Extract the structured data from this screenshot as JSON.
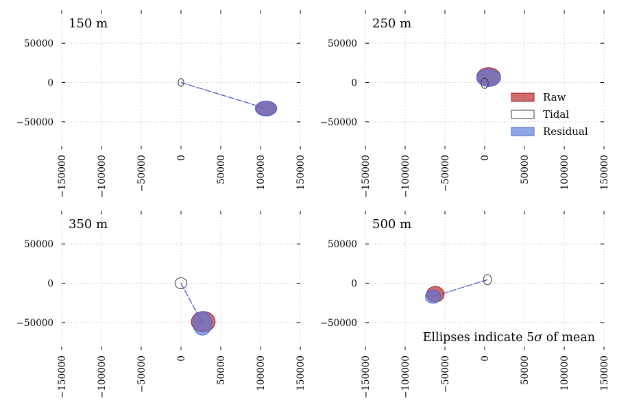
{
  "chart_data": {
    "type": "ellipse-vector",
    "shared": {
      "xlim": [
        -150000,
        150000
      ],
      "ylim": [
        -85000,
        92000
      ],
      "xticks": [
        -150000,
        -100000,
        -50000,
        0,
        50000,
        100000,
        150000
      ],
      "xtick_labels": [
        "−150000",
        "−100000",
        "−50000",
        "0",
        "50000",
        "100000",
        "150000"
      ],
      "yticks": [
        50000,
        0,
        -50000
      ],
      "ytick_labels": [
        "50000",
        "0",
        "−50000"
      ],
      "grid": true
    },
    "legend": {
      "placement": "upper-right panel, right side",
      "items": [
        {
          "label": "Raw",
          "key": "raw"
        },
        {
          "label": "Tidal",
          "key": "tidal"
        },
        {
          "label": "Residual",
          "key": "residual"
        }
      ]
    },
    "colors": {
      "raw_fill": "#c0393b",
      "raw_edge": "#9b2020",
      "tidal_edge": "#333333",
      "residual_fill": "#5577dd",
      "residual_edge": "#4a6ad8",
      "vector": "#3a4ad0"
    },
    "annotation": "Ellipses indicate 5$\\sigma$ of mean",
    "panels": [
      {
        "title": "150 m",
        "tidal": {
          "cx": 0,
          "cy": 0,
          "rx": 3500,
          "ry": 5000
        },
        "raw": {
          "cx": 107000,
          "cy": -33000,
          "rx": 13000,
          "ry": 9000
        },
        "residual": {
          "cx": 107000,
          "cy": -33000,
          "rx": 13500,
          "ry": 9500
        }
      },
      {
        "title": "250 m",
        "tidal": {
          "cx": 0,
          "cy": -1000,
          "rx": 4500,
          "ry": 6500
        },
        "raw": {
          "cx": 5000,
          "cy": 7000,
          "rx": 15000,
          "ry": 12000
        },
        "residual": {
          "cx": 5000,
          "cy": 6000,
          "rx": 15000,
          "ry": 11000
        }
      },
      {
        "title": "350 m",
        "tidal": {
          "cx": 0,
          "cy": 0,
          "rx": 7500,
          "ry": 7000
        },
        "raw": {
          "cx": 28000,
          "cy": -49000,
          "rx": 15000,
          "ry": 13000
        },
        "residual": {
          "cx": 27000,
          "cy": -51000,
          "rx": 12000,
          "ry": 15000
        }
      },
      {
        "title": "500 m",
        "tidal": {
          "cx": 3500,
          "cy": 4500,
          "rx": 5000,
          "ry": 6500
        },
        "raw": {
          "cx": -62000,
          "cy": -14000,
          "rx": 11000,
          "ry": 10000
        },
        "residual": {
          "cx": -65000,
          "cy": -17000,
          "rx": 9500,
          "ry": 8500
        }
      }
    ]
  }
}
